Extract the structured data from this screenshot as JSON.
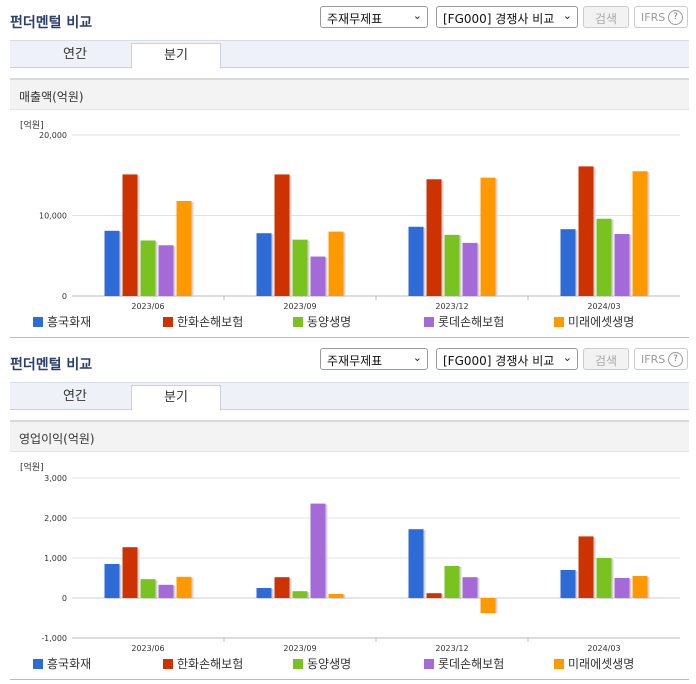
{
  "colors": {
    "series": [
      "#2e6bd6",
      "#cc3300",
      "#7ac21f",
      "#a36ad8",
      "#ff9900"
    ]
  },
  "panels": [
    {
      "title": "펀더멘털 비교",
      "select1": "주재무제표",
      "select2": "[FG000] 경쟁사 비교",
      "search_label": "검색",
      "ifrs_label": "IFRS",
      "ifrs_help": "?",
      "tabs": [
        {
          "label": "연간"
        },
        {
          "label": "분기"
        }
      ],
      "active_tab": 1,
      "subtitle": "매출액(억원)",
      "unit": "[억원]"
    },
    {
      "title": "펀더멘털 비교",
      "select1": "주재무제표",
      "select2": "[FG000] 경쟁사 비교",
      "search_label": "검색",
      "ifrs_label": "IFRS",
      "ifrs_help": "?",
      "tabs": [
        {
          "label": "연간"
        },
        {
          "label": "분기"
        }
      ],
      "active_tab": 1,
      "subtitle": "영업이익(억원)",
      "unit": "[억원]"
    }
  ],
  "chart_data": [
    {
      "type": "bar",
      "title": "매출액(억원)",
      "unit": "[억원]",
      "categories": [
        "2023/06",
        "2023/09",
        "2023/12",
        "2024/03"
      ],
      "ylim": [
        0,
        20000
      ],
      "yticks": [
        0,
        10000,
        20000
      ],
      "ytick_labels": [
        "0",
        "10,000",
        "20,000"
      ],
      "grid": true,
      "legend": "bottom",
      "series": [
        {
          "name": "흥국화재",
          "values": [
            8100,
            7800,
            8600,
            8300
          ]
        },
        {
          "name": "한화손해보험",
          "values": [
            15100,
            15100,
            14500,
            16100
          ]
        },
        {
          "name": "동양생명",
          "values": [
            6900,
            7000,
            7600,
            9600
          ]
        },
        {
          "name": "롯데손해보험",
          "values": [
            6300,
            4900,
            6600,
            7700
          ]
        },
        {
          "name": "미래에셋생명",
          "values": [
            11800,
            8000,
            14700,
            15500
          ]
        }
      ]
    },
    {
      "type": "bar",
      "title": "영업이익(억원)",
      "unit": "[억원]",
      "categories": [
        "2023/06",
        "2023/09",
        "2023/12",
        "2024/03"
      ],
      "ylim": [
        -1000,
        3000
      ],
      "yticks": [
        -1000,
        0,
        1000,
        2000,
        3000
      ],
      "ytick_labels": [
        "-1,000",
        "0",
        "1,000",
        "2,000",
        "3,000"
      ],
      "grid": true,
      "legend": "bottom",
      "series": [
        {
          "name": "흥국화재",
          "values": [
            850,
            250,
            1720,
            700
          ]
        },
        {
          "name": "한화손해보험",
          "values": [
            1270,
            520,
            120,
            1540
          ]
        },
        {
          "name": "동양생명",
          "values": [
            470,
            170,
            800,
            1000
          ]
        },
        {
          "name": "롯데손해보험",
          "values": [
            330,
            2360,
            520,
            500
          ]
        },
        {
          "name": "미래에셋생명",
          "values": [
            530,
            100,
            -380,
            550
          ]
        }
      ]
    }
  ]
}
